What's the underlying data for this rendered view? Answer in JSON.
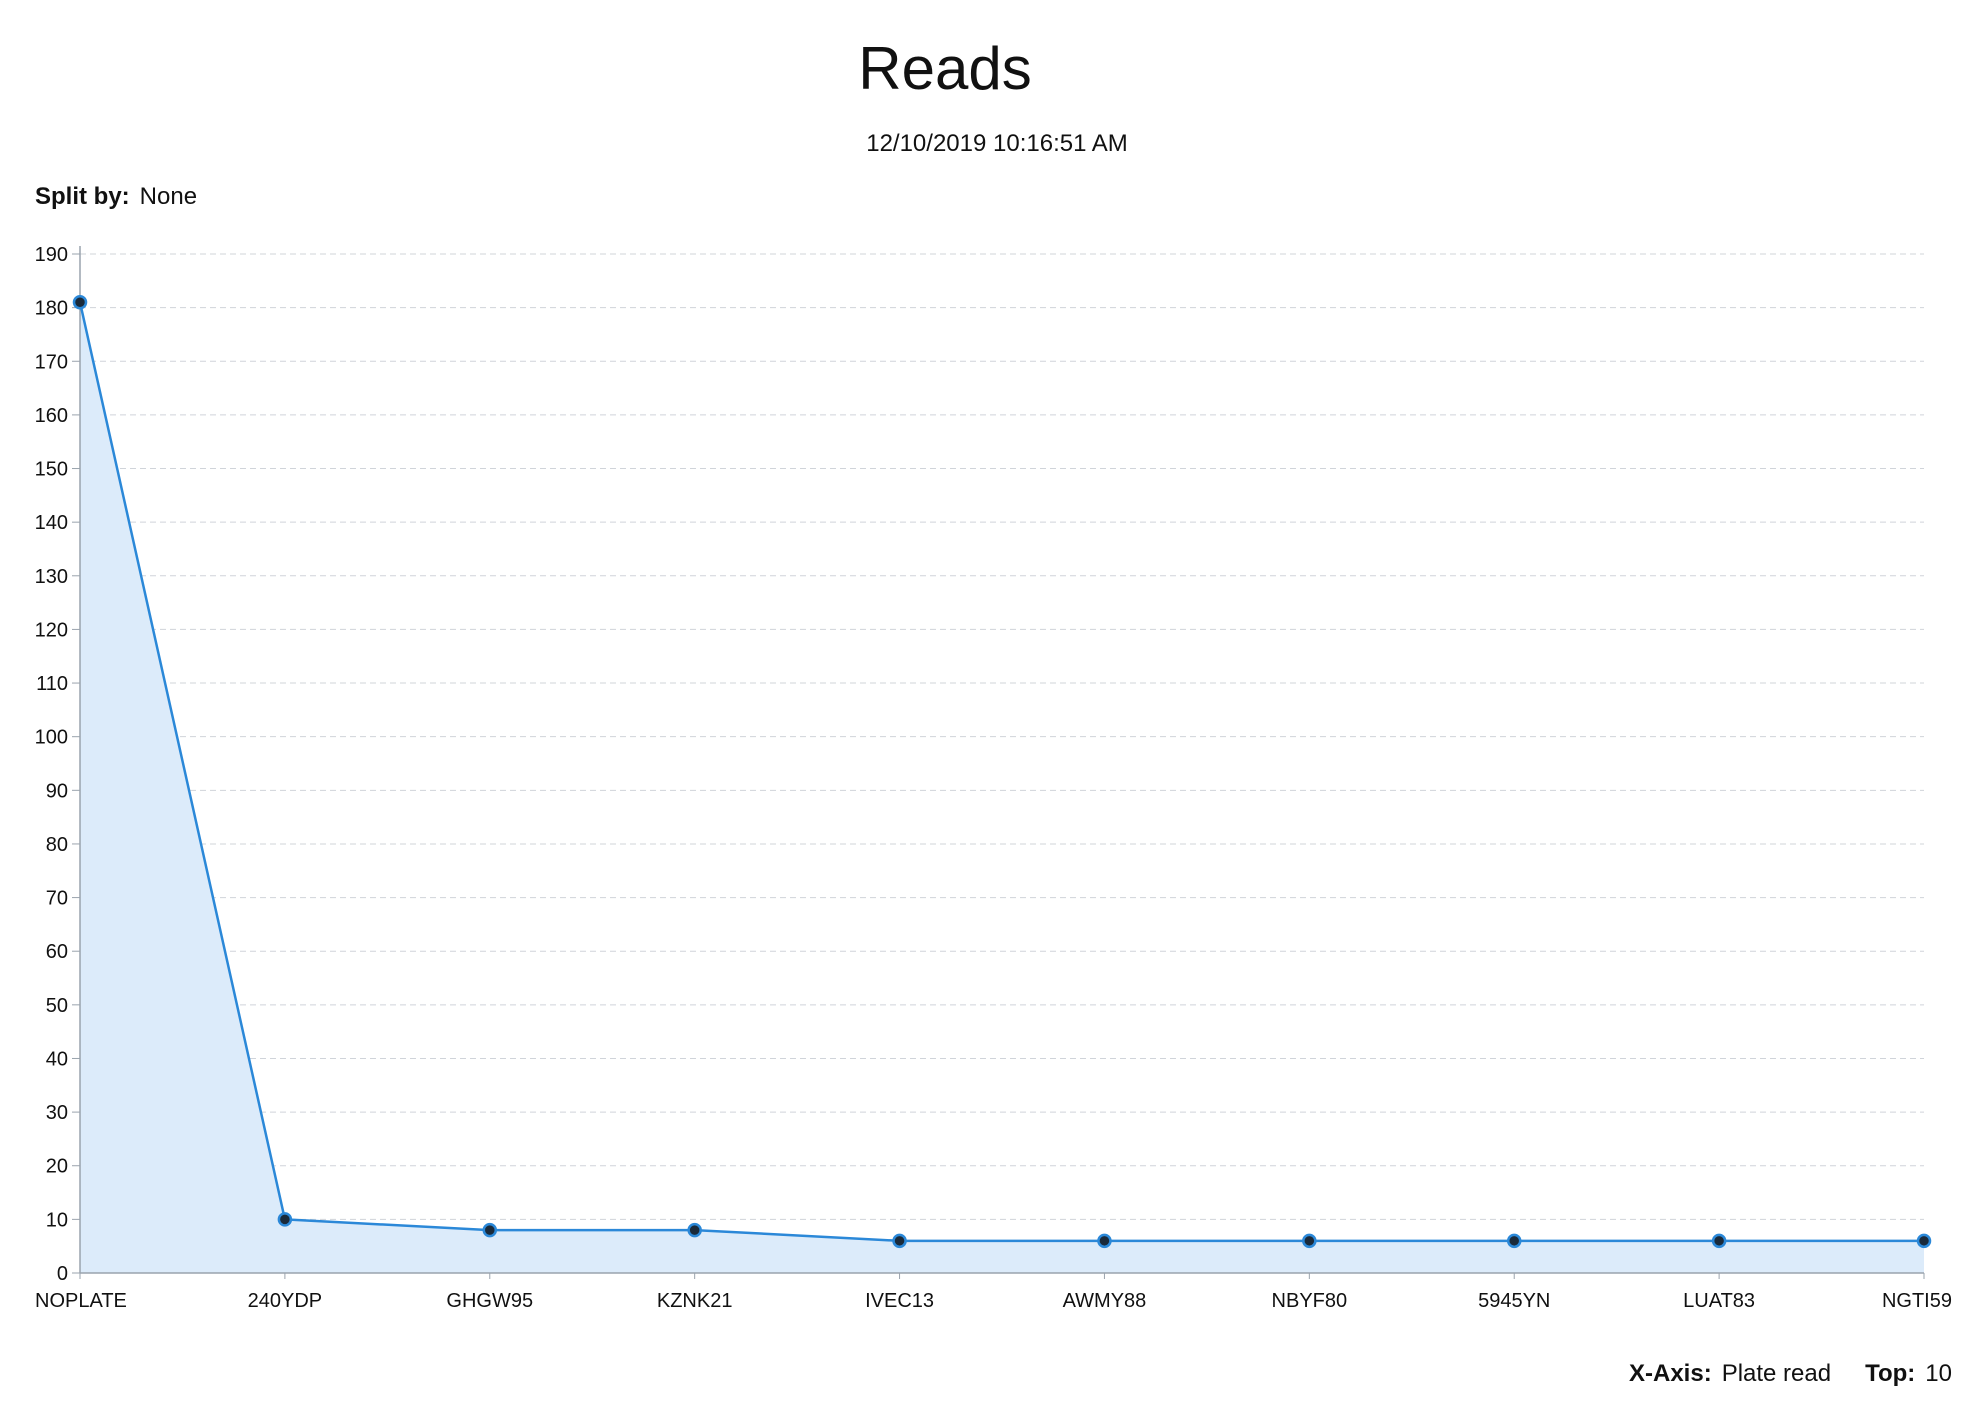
{
  "title": "Reads",
  "timestamp": "12/10/2019 10:16:51 AM",
  "split_by": {
    "label": "Split by:",
    "value": "None"
  },
  "footer": {
    "x_axis": {
      "label": "X-Axis:",
      "value": "Plate read"
    },
    "top": {
      "label": "Top:",
      "value": "10"
    }
  },
  "colors": {
    "line": "#2b88d8",
    "area": "#dcebfa",
    "marker_fill": "#1a2a3a",
    "grid": "#d0d4da",
    "axis": "#9aa3ad"
  },
  "chart_data": {
    "type": "area",
    "title": "Reads",
    "xlabel": "",
    "ylabel": "",
    "categories": [
      "NOPLATE",
      "240YDP",
      "GHGW95",
      "KZNK21",
      "IVEC13",
      "AWMY88",
      "NBYF80",
      "5945YN",
      "LUAT83",
      "NGTI59"
    ],
    "values": [
      181,
      10,
      8,
      8,
      6,
      6,
      6,
      6,
      6,
      6
    ],
    "ylim": [
      0,
      190
    ],
    "yticks": [
      0,
      10,
      20,
      30,
      40,
      50,
      60,
      70,
      80,
      90,
      100,
      110,
      120,
      130,
      140,
      150,
      160,
      170,
      180,
      190
    ],
    "grid": true,
    "legend": "none",
    "markers": true
  }
}
